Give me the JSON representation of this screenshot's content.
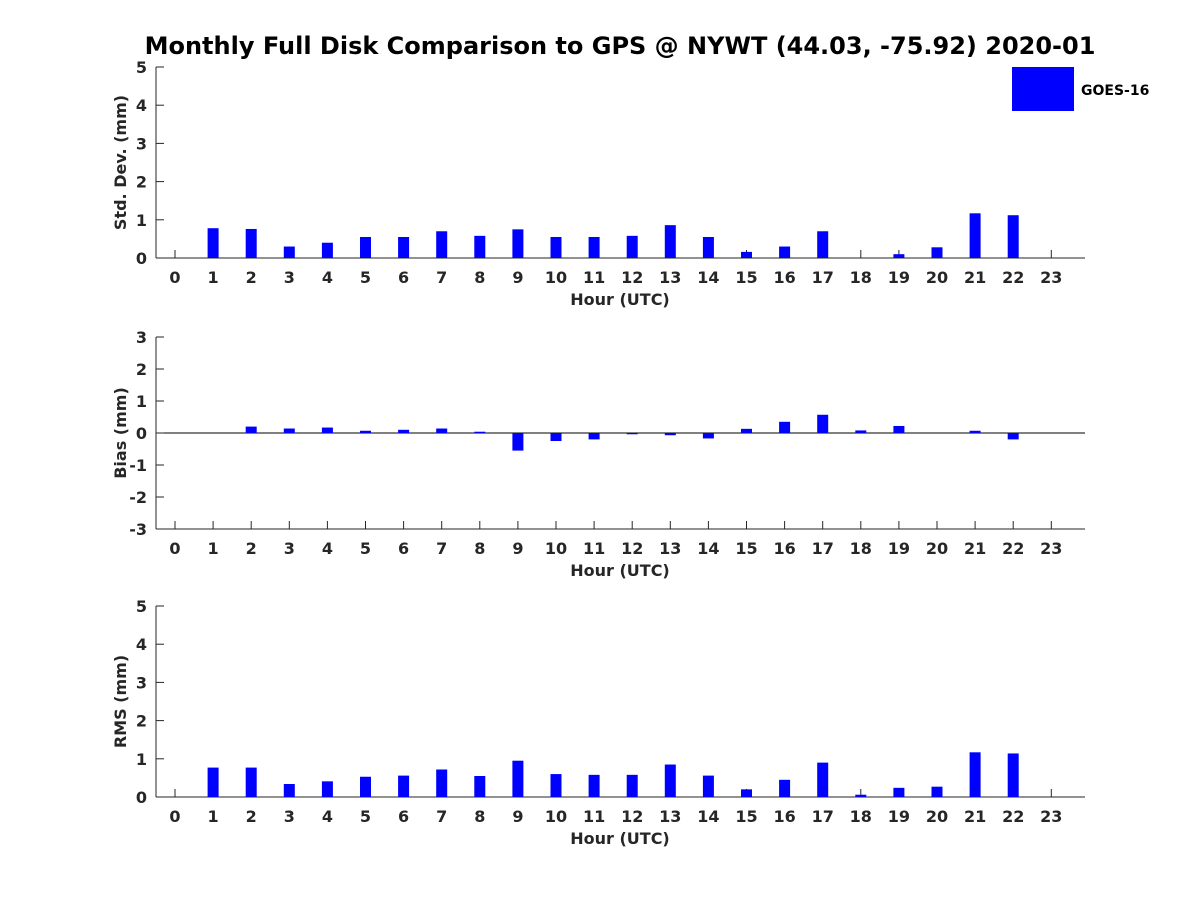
{
  "chart_data": {
    "type": "bar",
    "title": "Monthly Full Disk Comparison to GPS @ NYWT (44.03, -75.92) 2020-01",
    "legend": {
      "label": "GOES-16",
      "color": "#0000ff",
      "position": "top-right"
    },
    "categories": [
      "0",
      "1",
      "2",
      "3",
      "4",
      "5",
      "6",
      "7",
      "8",
      "9",
      "10",
      "11",
      "12",
      "13",
      "14",
      "15",
      "16",
      "17",
      "18",
      "19",
      "20",
      "21",
      "22",
      "23"
    ],
    "panels": [
      {
        "id": "std",
        "ylabel": "Std. Dev. (mm)",
        "xlabel": "Hour (UTC)",
        "ylim": [
          0,
          5
        ],
        "yticks": [
          0,
          1,
          2,
          3,
          4,
          5
        ],
        "zero_line": false,
        "values": [
          0,
          0.78,
          0.76,
          0.3,
          0.4,
          0.55,
          0.55,
          0.7,
          0.58,
          0.75,
          0.55,
          0.55,
          0.58,
          0.86,
          0.55,
          0.16,
          0.3,
          0.7,
          0,
          0.1,
          0.28,
          1.17,
          1.12,
          0
        ]
      },
      {
        "id": "bias",
        "ylabel": "Bias (mm)",
        "xlabel": "Hour (UTC)",
        "ylim": [
          -3,
          3
        ],
        "yticks": [
          -3,
          -2,
          -1,
          0,
          1,
          2,
          3
        ],
        "zero_line": true,
        "values": [
          0,
          0,
          0.2,
          0.14,
          0.17,
          0.07,
          0.1,
          0.14,
          0.04,
          -0.55,
          -0.25,
          -0.2,
          -0.04,
          -0.07,
          -0.17,
          0.13,
          0.35,
          0.57,
          0.08,
          0.22,
          0,
          0.07,
          -0.2,
          0
        ]
      },
      {
        "id": "rms",
        "ylabel": "RMS (mm)",
        "xlabel": "Hour (UTC)",
        "ylim": [
          0,
          5
        ],
        "yticks": [
          0,
          1,
          2,
          3,
          4,
          5
        ],
        "zero_line": false,
        "values": [
          0,
          0.77,
          0.77,
          0.34,
          0.41,
          0.53,
          0.56,
          0.72,
          0.55,
          0.95,
          0.6,
          0.58,
          0.58,
          0.85,
          0.56,
          0.2,
          0.45,
          0.9,
          0.06,
          0.24,
          0.27,
          1.17,
          1.14,
          0
        ]
      }
    ]
  }
}
